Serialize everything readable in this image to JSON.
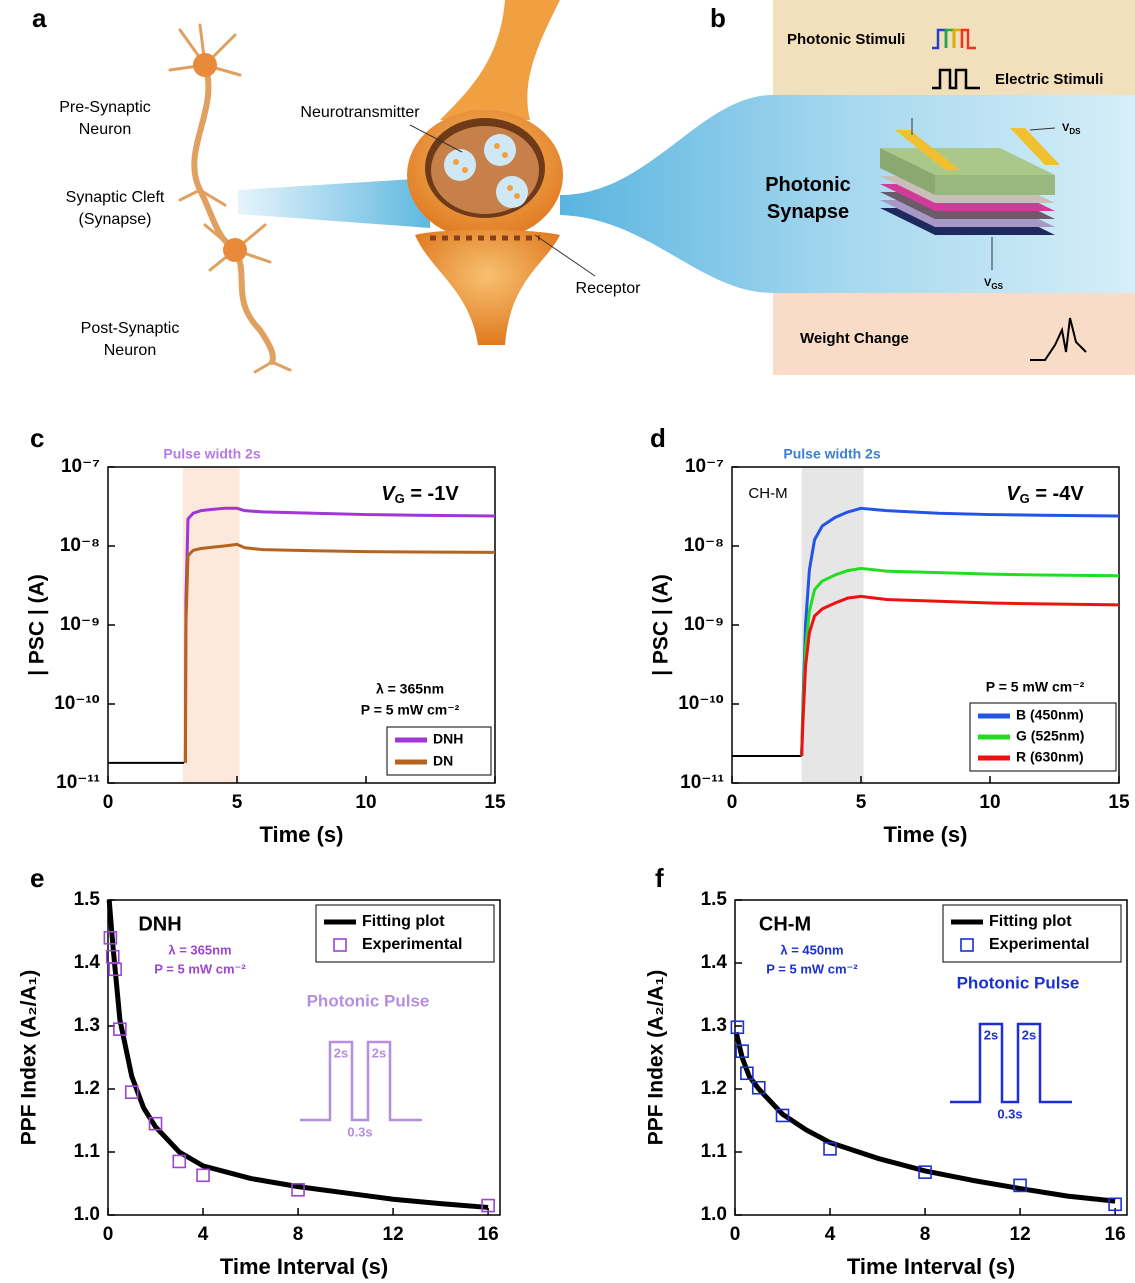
{
  "diagram": {
    "panel_a": "a",
    "panel_b": "b",
    "pre_synaptic": [
      "Pre-Synaptic",
      "Neuron"
    ],
    "synaptic_cleft": [
      "Synaptic Cleft",
      "(Synapse)"
    ],
    "post_synaptic": [
      "Post-Synaptic",
      "Neuron"
    ],
    "neurotransmitter": "Neurotransmitter",
    "receptor": "Receptor",
    "photonic_stimuli": "Photonic Stimuli",
    "electric_stimuli": "Electric Stimuli",
    "photonic_synapse": [
      "Photonic",
      "Synapse"
    ],
    "v_ds": {
      "symbol": "V",
      "subscript": "DS"
    },
    "v_gs": {
      "symbol": "V",
      "subscript": "GS"
    },
    "weight_change": "Weight Change"
  },
  "chart_data": [
    {
      "type": "line",
      "panel": "c",
      "yscale": "log",
      "xlabel": "Time (s)",
      "ylabel": "| PSC | (A)",
      "xlim": [
        0,
        15
      ],
      "xticks": [
        0,
        5,
        10,
        15
      ],
      "ylim": [
        1e-11,
        1e-07
      ],
      "yticks": [
        {
          "value": 1e-11,
          "label": "10⁻¹¹"
        },
        {
          "value": 1e-10,
          "label": "10⁻¹⁰"
        },
        {
          "value": 1e-09,
          "label": "10⁻⁹"
        },
        {
          "value": 1e-08,
          "label": "10⁻⁸"
        },
        {
          "value": 1e-07,
          "label": "10⁻⁷"
        }
      ],
      "shade": {
        "x": [
          2.9,
          5.1
        ],
        "color": "#fde9dc"
      },
      "pulse_label": "Pulse width 2s",
      "pulse_label_color": "#b47ae6",
      "gate": {
        "symbol": "V",
        "subscript": "G",
        "text": " = -1V"
      },
      "wavelength": "λ = 365nm",
      "power": "P = 5 mW cm⁻²",
      "annotation_color": "#000000",
      "baseline": {
        "color": "#000000",
        "x": [
          0,
          2.95
        ],
        "values": [
          1.8e-11,
          1.8e-11
        ]
      },
      "x": [
        3,
        3.02,
        3.1,
        3.3,
        3.6,
        4,
        4.5,
        5,
        5.3,
        6,
        8,
        10,
        12,
        15
      ],
      "series": [
        {
          "name": "DNH",
          "color": "#a235d6",
          "mode": "line",
          "values": [
            1.8e-11,
            2e-09,
            2.2e-08,
            2.6e-08,
            2.8e-08,
            2.9e-08,
            3e-08,
            3e-08,
            2.8e-08,
            2.7e-08,
            2.6e-08,
            2.5e-08,
            2.45e-08,
            2.4e-08
          ]
        },
        {
          "name": "DN",
          "color": "#b5631f",
          "mode": "line",
          "values": [
            1.8e-11,
            1e-09,
            7.5e-09,
            8.8e-09,
            9.3e-09,
            9.6e-09,
            1e-08,
            1.05e-08,
            9.5e-09,
            9e-09,
            8.7e-09,
            8.5e-09,
            8.4e-09,
            8.3e-09
          ]
        }
      ]
    },
    {
      "type": "line",
      "panel": "d",
      "yscale": "log",
      "xlabel": "Time (s)",
      "ylabel": "| PSC | (A)",
      "xlim": [
        0,
        15
      ],
      "xticks": [
        0,
        5,
        10,
        15
      ],
      "ylim": [
        1e-11,
        1e-07
      ],
      "yticks": [
        {
          "value": 1e-11,
          "label": "10⁻¹¹"
        },
        {
          "value": 1e-10,
          "label": "10⁻¹⁰"
        },
        {
          "value": 1e-09,
          "label": "10⁻⁹"
        },
        {
          "value": 1e-08,
          "label": "10⁻⁸"
        },
        {
          "value": 1e-07,
          "label": "10⁻⁷"
        }
      ],
      "shade": {
        "x": [
          2.7,
          5.1
        ],
        "color": "#e6e6e6"
      },
      "pulse_label": "Pulse width 2s",
      "pulse_label_color": "#3c7fd4",
      "sample_label": "CH-M",
      "gate": {
        "symbol": "V",
        "subscript": "G",
        "text": " = -4V"
      },
      "power": "P = 5 mW cm⁻²",
      "annotation_color": "#000000",
      "baseline": {
        "color": "#000000",
        "x": [
          0,
          2.7
        ],
        "values": [
          2.2e-11,
          2.2e-11
        ]
      },
      "x": [
        2.7,
        2.75,
        2.85,
        3,
        3.2,
        3.5,
        4,
        4.5,
        5,
        5.5,
        6,
        8,
        10,
        12,
        15
      ],
      "series": [
        {
          "name": "B (450nm)",
          "color": "#2255e6",
          "mode": "line",
          "values": [
            2.2e-11,
            1e-10,
            1e-09,
            5e-09,
            1.2e-08,
            1.8e-08,
            2.3e-08,
            2.7e-08,
            3e-08,
            2.9e-08,
            2.8e-08,
            2.6e-08,
            2.5e-08,
            2.45e-08,
            2.4e-08
          ]
        },
        {
          "name": "G (525nm)",
          "color": "#22dd22",
          "mode": "line",
          "values": [
            2.2e-11,
            8e-11,
            5e-10,
            1.5e-09,
            2.8e-09,
            3.6e-09,
            4.3e-09,
            4.9e-09,
            5.2e-09,
            5e-09,
            4.8e-09,
            4.6e-09,
            4.4e-09,
            4.3e-09,
            4.2e-09
          ]
        },
        {
          "name": "R (630nm)",
          "color": "#ee1111",
          "mode": "line",
          "values": [
            2.2e-11,
            6e-11,
            3e-10,
            8e-10,
            1.3e-09,
            1.6e-09,
            1.9e-09,
            2.2e-09,
            2.3e-09,
            2.2e-09,
            2.1e-09,
            2e-09,
            1.9e-09,
            1.85e-09,
            1.8e-09
          ]
        }
      ]
    },
    {
      "type": "scatter",
      "panel": "e",
      "xlabel": "Time Interval (s)",
      "ylabel": "PPF Index (A₂/A₁)",
      "xlim": [
        0,
        16.5
      ],
      "xticks": [
        0,
        4,
        8,
        12,
        16
      ],
      "ylim": [
        1.0,
        1.5
      ],
      "yticks": [
        {
          "value": 1.0,
          "label": "1.0"
        },
        1.1,
        1.2,
        1.3,
        1.4,
        1.5
      ],
      "sample_label": "DNH",
      "wavelength": "λ = 365nm",
      "power": "P = 5 mW cm⁻²",
      "annotation_color": "#9b45d0",
      "inset": {
        "title": "Photonic Pulse",
        "width_labels": [
          "2s",
          "2s"
        ],
        "gap_label": "0.3s",
        "color": "#b58ee0"
      },
      "series": [
        {
          "name": "Fitting plot",
          "color": "#000000",
          "mode": "line",
          "x": [
            0.05,
            0.2,
            0.5,
            1,
            1.5,
            2,
            3,
            4,
            6,
            8,
            10,
            12,
            14,
            16
          ],
          "values": [
            1.5,
            1.43,
            1.31,
            1.22,
            1.17,
            1.14,
            1.1,
            1.078,
            1.058,
            1.045,
            1.035,
            1.025,
            1.018,
            1.012
          ]
        },
        {
          "name": "Experimental",
          "color": "#9b45d0",
          "mode": "markers",
          "x": [
            0.1,
            0.2,
            0.3,
            0.5,
            1,
            2,
            3,
            4,
            8,
            16
          ],
          "values": [
            1.44,
            1.41,
            1.39,
            1.295,
            1.195,
            1.145,
            1.085,
            1.063,
            1.04,
            1.015
          ]
        }
      ]
    },
    {
      "type": "scatter",
      "panel": "f",
      "xlabel": "Time Interval (s)",
      "ylabel": "PPF Index (A₂/A₁)",
      "xlim": [
        0,
        16.5
      ],
      "xticks": [
        0,
        4,
        8,
        12,
        16
      ],
      "ylim": [
        1.0,
        1.5
      ],
      "yticks": [
        {
          "value": 1.0,
          "label": "1.0"
        },
        1.1,
        1.2,
        1.3,
        1.4,
        1.5
      ],
      "sample_label": "CH-M",
      "wavelength": "λ = 450nm",
      "power": "P = 5 mW cm⁻²",
      "annotation_color": "#1a2fd6",
      "inset": {
        "title": "Photonic Pulse",
        "width_labels": [
          "2s",
          "2s"
        ],
        "gap_label": "0.3s",
        "color": "#1a2fd6"
      },
      "series": [
        {
          "name": "Fitting plot",
          "color": "#000000",
          "mode": "line",
          "x": [
            0.05,
            0.3,
            0.6,
            1,
            2,
            3,
            4,
            6,
            8,
            10,
            12,
            14,
            16
          ],
          "values": [
            1.29,
            1.25,
            1.22,
            1.2,
            1.16,
            1.135,
            1.115,
            1.09,
            1.07,
            1.055,
            1.042,
            1.03,
            1.022
          ]
        },
        {
          "name": "Experimental",
          "color": "#1a2fd6",
          "mode": "markers",
          "x": [
            0.1,
            0.3,
            0.5,
            1,
            2,
            4,
            8,
            12,
            16
          ],
          "values": [
            1.298,
            1.26,
            1.225,
            1.202,
            1.158,
            1.105,
            1.068,
            1.047,
            1.017
          ]
        }
      ]
    }
  ]
}
